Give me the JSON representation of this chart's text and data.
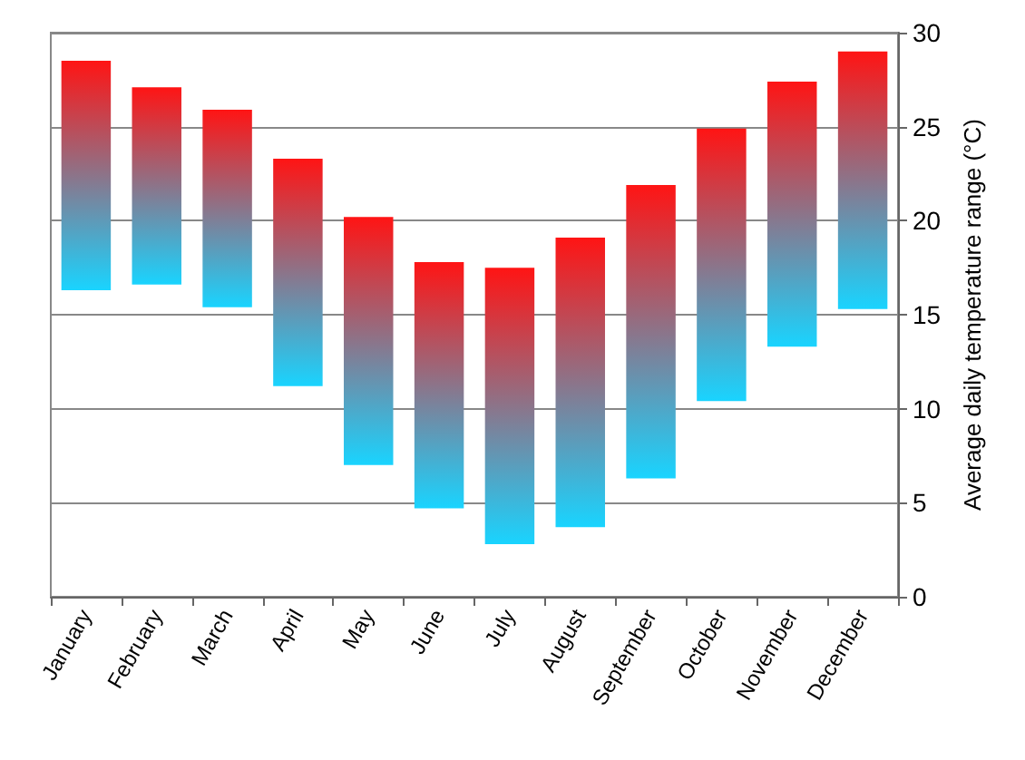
{
  "chart_data": {
    "type": "bar",
    "ylabel": "Average daily temperature range (°C)",
    "categories": [
      "January",
      "February",
      "March",
      "April",
      "May",
      "June",
      "July",
      "August",
      "September",
      "October",
      "November",
      "December"
    ],
    "series": [
      {
        "color": "#ff1414",
        "values": [
          12.2,
          10.5,
          10.5,
          12.1,
          13.2,
          13.1,
          14.7,
          15.4,
          15.6,
          14.5,
          14.1,
          13.7
        ],
        "base": [
          16.3,
          16.6,
          15.4,
          11.2,
          7.0,
          4.7,
          2.8,
          3.7,
          6.3,
          10.4,
          13.3,
          15.3
        ]
      }
    ],
    "ylim": [
      0,
      30
    ],
    "yticks": [
      0,
      5,
      10,
      15,
      20,
      25,
      30
    ],
    "grid": "y"
  }
}
